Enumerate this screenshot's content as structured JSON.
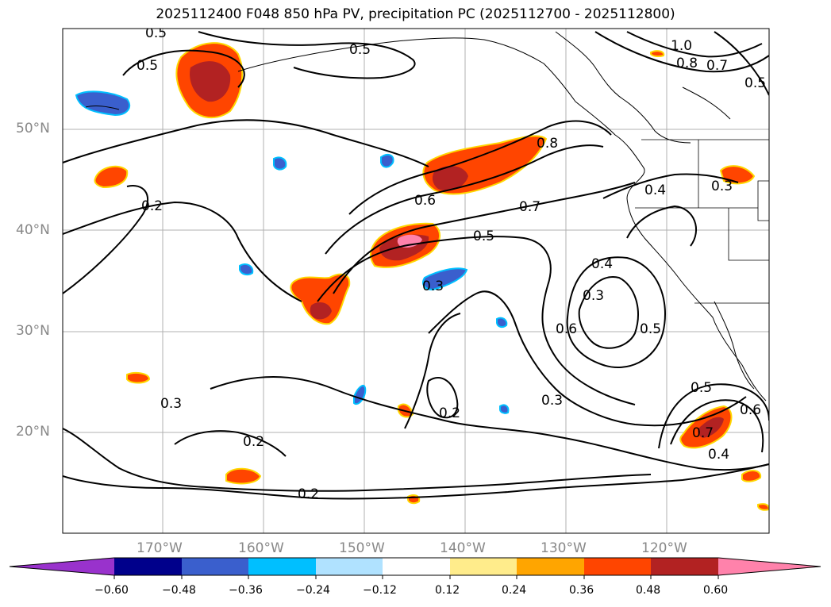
{
  "title": "2025112400 F048 850 hPa PV, precipitation PC (2025112700 - 2025112800)",
  "lat_labels": [
    "50°N",
    "40°N",
    "30°N",
    "20°N"
  ],
  "lon_labels": [
    "170°W",
    "160°W",
    "150°W",
    "140°W",
    "130°W",
    "120°W"
  ],
  "colorbar": {
    "ticks": [
      "−0.60",
      "−0.48",
      "−0.36",
      "−0.24",
      "−0.12",
      "0.12",
      "0.24",
      "0.36",
      "0.48",
      "0.60"
    ],
    "colors": [
      "#9932cc",
      "#00008b",
      "#3a5fcd",
      "#00bfff",
      "#b0e2ff",
      "#ffffff",
      "#ffec8b",
      "#ffa500",
      "#ff4500",
      "#b22222",
      "#ff82ab"
    ]
  },
  "contour_labels": [
    "0.5",
    "0.5",
    "0.5",
    "1.0",
    "0.8",
    "0.7",
    "0.5",
    "0.8",
    "0.4",
    "0.3",
    "0.2",
    "0.6",
    "0.7",
    "0.5",
    "0.3",
    "0.4",
    "0.3",
    "0.6",
    "0.5",
    "0.3",
    "0.3",
    "0.2",
    "0.2",
    "0.2",
    "0.5",
    "0.6",
    "0.7",
    "0.4"
  ]
}
